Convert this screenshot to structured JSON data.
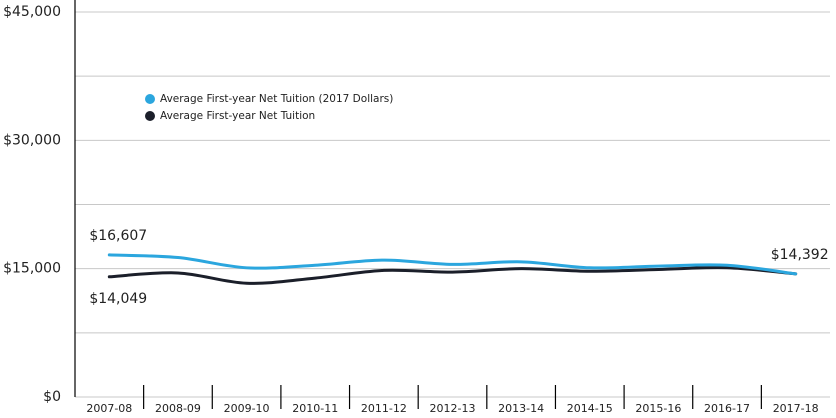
{
  "chart_data": {
    "type": "line",
    "categories": [
      "2007-08",
      "2008-09",
      "2009-10",
      "2010-11",
      "2011-12",
      "2012-13",
      "2013-14",
      "2014-15",
      "2015-16",
      "2016-17",
      "2017-18"
    ],
    "series": [
      {
        "name": "Average First-year Net Tuition (2017 Dollars)",
        "color": "#2ba6de",
        "values": [
          16607,
          16300,
          15100,
          15400,
          16000,
          15500,
          15800,
          15100,
          15300,
          15400,
          14392
        ],
        "value_labels": [
          "$16,607",
          null,
          null,
          null,
          null,
          null,
          null,
          null,
          null,
          null,
          "$14,392"
        ]
      },
      {
        "name": "Average First-year Net Tuition",
        "color": "#1b1f2a",
        "values": [
          14049,
          14500,
          13300,
          13900,
          14800,
          14600,
          15000,
          14700,
          14900,
          15100,
          14392
        ],
        "value_labels": [
          "$14,049",
          null,
          null,
          null,
          null,
          null,
          null,
          null,
          null,
          null,
          null
        ]
      }
    ],
    "ylim": [
      0,
      45000
    ],
    "yticks": [
      {
        "value": 0,
        "label": "$0"
      },
      {
        "value": 15000,
        "label": "$15,000"
      },
      {
        "value": 30000,
        "label": "$30,000"
      },
      {
        "value": 45000,
        "label": "$45,000"
      }
    ],
    "minor_yticks": [
      7500,
      22500,
      37500
    ],
    "grid": true,
    "legend": "upper left"
  }
}
